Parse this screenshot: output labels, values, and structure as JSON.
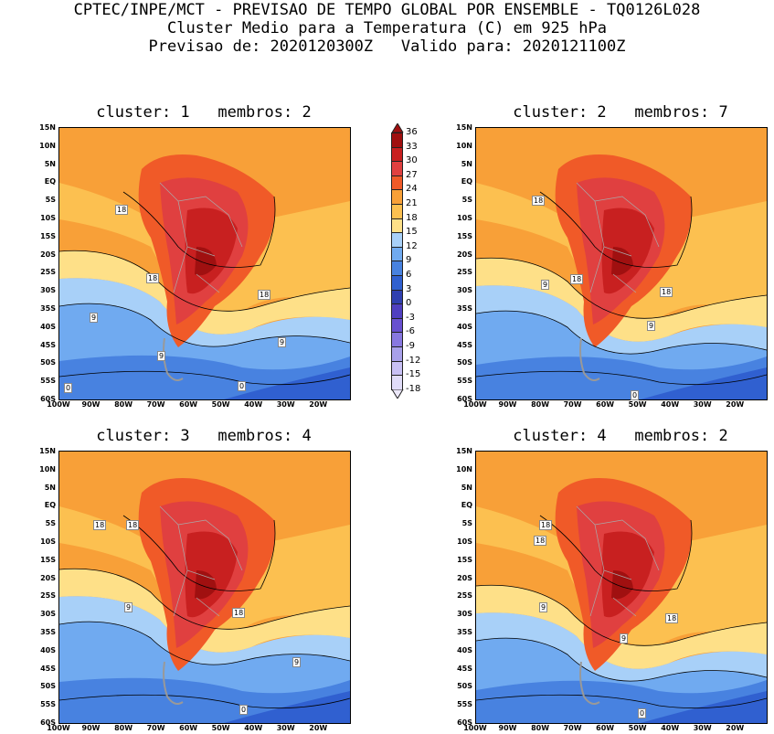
{
  "header": {
    "line1": "CPTEC/INPE/MCT - PREVISAO DE TEMPO GLOBAL POR ENSEMBLE - TQ0126L028",
    "line2": "Cluster Medio para a Temperatura (C) em 925 hPa",
    "line3": "Previsao de: 2020120300Z   Valido para: 2020121100Z"
  },
  "y_ticks": [
    "15N",
    "10N",
    "5N",
    "EQ",
    "5S",
    "10S",
    "15S",
    "20S",
    "25S",
    "30S",
    "35S",
    "40S",
    "45S",
    "50S",
    "55S",
    "60S"
  ],
  "x_ticks": [
    "100W",
    "90W",
    "80W",
    "70W",
    "60W",
    "50W",
    "40W",
    "30W",
    "20W"
  ],
  "colorbar": {
    "labels": [
      "36",
      "33",
      "30",
      "27",
      "24",
      "21",
      "18",
      "15",
      "12",
      "9",
      "6",
      "3",
      "0",
      "-3",
      "-6",
      "-9",
      "-12",
      "-15",
      "-18"
    ],
    "colors": [
      "#a01010",
      "#c82020",
      "#e04040",
      "#f05a28",
      "#f8a038",
      "#fcc050",
      "#fee088",
      "#a8d0f8",
      "#70aaf0",
      "#4882e0",
      "#3060d0",
      "#3040b0",
      "#5040c0",
      "#6850d0",
      "#8878e0",
      "#a8a0ea",
      "#c8c0f4",
      "#e0dcf8"
    ]
  },
  "panels": [
    {
      "title": "cluster: 1   membros: 2",
      "contour_labels": [
        "18",
        "18",
        "18",
        "9",
        "9",
        "9",
        "0",
        "0"
      ]
    },
    {
      "title": "cluster: 2   membros: 7",
      "contour_labels": [
        "18",
        "18",
        "18",
        "9",
        "9",
        "0"
      ]
    },
    {
      "title": "cluster: 3   membros: 4",
      "contour_labels": [
        "18",
        "18",
        "18",
        "9",
        "9",
        "0"
      ]
    },
    {
      "title": "cluster: 4   membros: 2",
      "contour_labels": [
        "18",
        "18",
        "18",
        "9",
        "9",
        "0"
      ]
    }
  ]
}
